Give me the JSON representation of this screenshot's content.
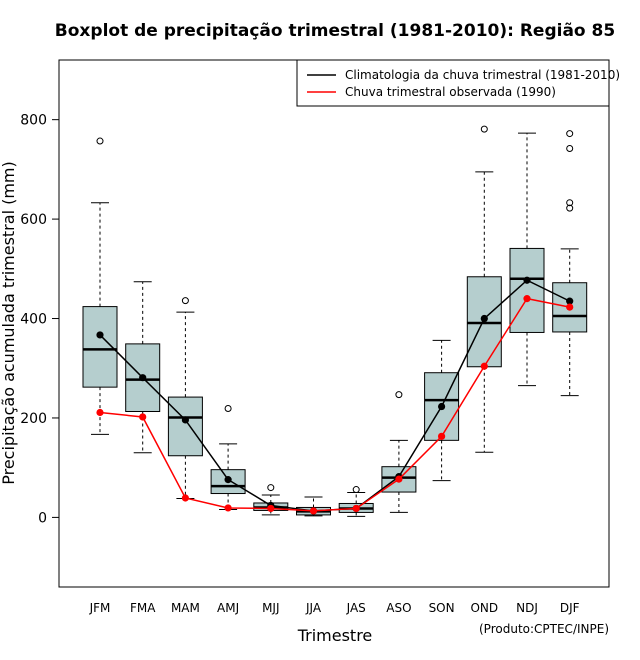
{
  "chart_data": {
    "type": "boxplot",
    "title": "Boxplot de precipitação trimestral (1981-2010): Região 85",
    "xlabel": "Trimestre",
    "ylabel": "Precipitação acumulada trimestral (mm)",
    "ylim": [
      -140,
      920
    ],
    "yticks": [
      0,
      200,
      400,
      600,
      800
    ],
    "credit": "(Produto:CPTEC/INPE)",
    "legend_position": "top-right",
    "categories": [
      "JFM",
      "FMA",
      "MAM",
      "AMJ",
      "MJJ",
      "JJA",
      "JAS",
      "ASO",
      "SON",
      "OND",
      "NDJ",
      "DJF"
    ],
    "boxes": [
      {
        "min": 167,
        "q1": 262,
        "median": 338,
        "q3": 424,
        "max": 633,
        "outliers": [
          757
        ]
      },
      {
        "min": 130,
        "q1": 213,
        "median": 277,
        "q3": 349,
        "max": 474,
        "outliers": []
      },
      {
        "min": 38,
        "q1": 124,
        "median": 201,
        "q3": 242,
        "max": 413,
        "outliers": [
          436
        ]
      },
      {
        "min": 16,
        "q1": 48,
        "median": 63,
        "q3": 96,
        "max": 148,
        "outliers": [
          219
        ]
      },
      {
        "min": 5,
        "q1": 14,
        "median": 20,
        "q3": 29,
        "max": 45,
        "outliers": [
          60
        ]
      },
      {
        "min": 3,
        "q1": 5,
        "median": 12,
        "q3": 20,
        "max": 41,
        "outliers": []
      },
      {
        "min": 2,
        "q1": 10,
        "median": 18,
        "q3": 28,
        "max": 50,
        "outliers": [
          56
        ]
      },
      {
        "min": 10,
        "q1": 51,
        "median": 80,
        "q3": 102,
        "max": 155,
        "outliers": [
          247
        ]
      },
      {
        "min": 74,
        "q1": 155,
        "median": 236,
        "q3": 291,
        "max": 356,
        "outliers": []
      },
      {
        "min": 131,
        "q1": 303,
        "median": 391,
        "q3": 484,
        "max": 695,
        "outliers": [
          781
        ]
      },
      {
        "min": 265,
        "q1": 372,
        "median": 480,
        "q3": 541,
        "max": 773,
        "outliers": []
      },
      {
        "min": 245,
        "q1": 373,
        "median": 405,
        "q3": 472,
        "max": 540,
        "outliers": [
          622,
          633,
          742,
          772
        ]
      }
    ],
    "series": [
      {
        "name": "Climatologia da chuva trimestral (1981-2010)",
        "color": "#000000",
        "values": [
          367,
          281,
          196,
          76,
          24,
          13,
          18,
          82,
          223,
          400,
          477,
          435
        ]
      },
      {
        "name": "Chuva trimestral observada (1990)",
        "color": "#ff0000",
        "values": [
          211,
          202,
          39,
          19,
          18,
          13,
          18,
          77,
          163,
          304,
          440,
          423
        ]
      }
    ],
    "box_color": "#b5cece"
  }
}
